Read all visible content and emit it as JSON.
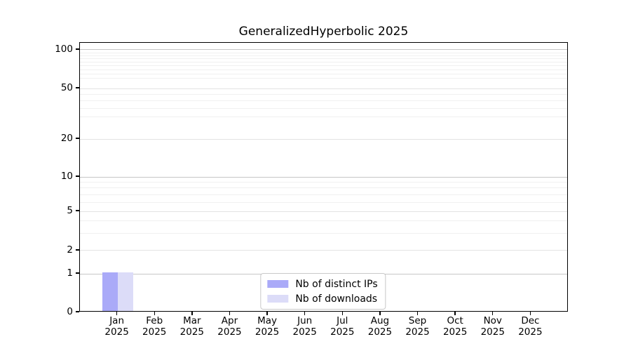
{
  "chart_data": {
    "type": "bar",
    "title": "GeneralizedHyperbolic 2025",
    "categories": [
      "Jan",
      "Feb",
      "Mar",
      "Apr",
      "May",
      "Jun",
      "Jul",
      "Aug",
      "Sep",
      "Oct",
      "Nov",
      "Dec"
    ],
    "x_year_label": "2025",
    "series": [
      {
        "name": "Nb of distinct IPs",
        "color": "#aaaaf8",
        "values": [
          1,
          0,
          0,
          0,
          0,
          0,
          0,
          0,
          0,
          0,
          0,
          0
        ]
      },
      {
        "name": "Nb of downloads",
        "color": "#dcdcf8",
        "values": [
          1,
          0,
          0,
          0,
          0,
          0,
          0,
          0,
          0,
          0,
          0,
          0
        ]
      }
    ],
    "y_axis": {
      "scale": "log-like with 0 baseline",
      "major_ticks": [
        0,
        1,
        2,
        5,
        10,
        20,
        50,
        100
      ],
      "decade_ticks": [
        1,
        10,
        100
      ],
      "minor_gridlines": [
        3,
        4,
        6,
        7,
        8,
        9,
        30,
        35,
        40,
        45,
        60,
        65,
        70,
        75,
        80,
        85,
        90,
        95
      ],
      "ylim": [
        0,
        113
      ]
    },
    "grid": true,
    "legend": {
      "position": "bottom-center",
      "items": [
        "Nb of distinct IPs",
        "Nb of downloads"
      ]
    },
    "colors": {
      "background": "#ffffff",
      "spine": "#000000",
      "decade_gridline": "#c6c6c6",
      "major_gridline": "#e3e3e3",
      "minor_gridline": "#f0f0f0",
      "text": "#000000",
      "legend_border": "#c9c9c9"
    }
  }
}
